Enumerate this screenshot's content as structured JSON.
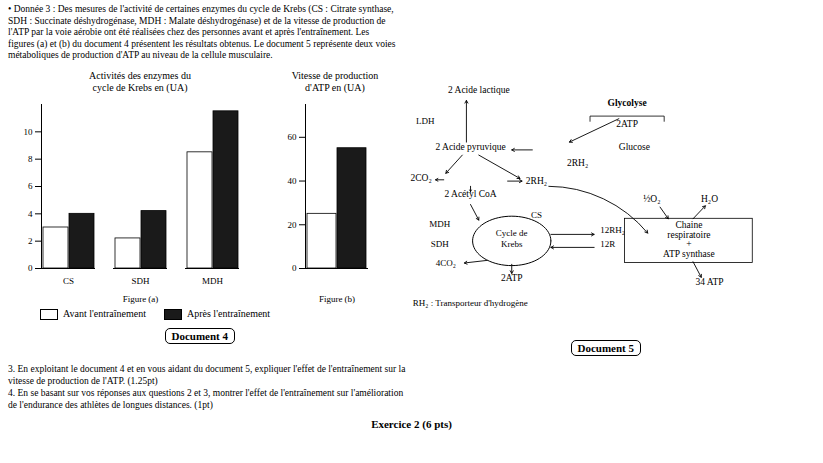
{
  "chart_data": [
    {
      "type": "bar",
      "title": "Activités des enzymes du\ncycle de Krebs en (UA)",
      "x_label": "Figure (a)",
      "categories": [
        "CS",
        "SDH",
        "MDH"
      ],
      "series": [
        {
          "name": "Avant l'entraînement",
          "color": "#ffffff",
          "values": [
            3.0,
            2.2,
            8.5
          ]
        },
        {
          "name": "Après l'entraînement",
          "color": "#1a1a1a",
          "values": [
            4.0,
            4.2,
            11.5
          ]
        }
      ],
      "ylim": [
        0,
        12
      ],
      "yticks": [
        0,
        2,
        4,
        6,
        8,
        10
      ],
      "grid": false,
      "legend": "bottom left",
      "annotations": [
        "• Donnée 3 : Des mesures de l'activité de certaines enzymes du cycle de Krebs (CS : Citrate synthase,\nSDH : Succinate déshydrogénase, MDH : Malate déshydrogénase) et de la vitesse de production de\nl'ATP par la voie aérobie ont été réalisées chez des personnes avant et après l'entraînement. Les\nfigures (a) et (b) du document 4 présentent les résultats obtenus. Le document 5 représente deux voies\nmétaboliques de production d'ATP au niveau de la cellule musculaire.",
        "Document 4",
        "Document 5",
        "3. En exploitant le document 4 et en vous aidant du document 5, expliquer l'effet de l'entraînement sur la\nvitesse de production de l'ATP. (1.25pt)",
        "4. En se basant sur vos réponses aux questions 2 et 3, montrer l'effet de l'entraînement sur l'amélioration\nde l'endurance des athlètes de longues distances. (1pt)",
        "Exercice 2 (6 pts)",
        "2 Acide lactique",
        "LDH",
        "2 Acide pyruvique",
        "Glucose",
        "Glycolyse",
        "2ATP",
        "2RH₂",
        "2CO₂",
        "2RH₂",
        "2 Acétyl CoA",
        "CS",
        "Cycle de",
        "Krebs",
        "MDH",
        "SDH",
        "12RH₂",
        "12R",
        "Chaine",
        "respiratoire",
        "+",
        "ATP synthase",
        "½O₂",
        "H₂O",
        "4CO₂",
        "2ATP",
        "34 ATP",
        "RH₂ : Transporteur d'hydrogène"
      ]
    },
    {
      "type": "bar",
      "title": "Vitesse de production\nd'ATP en (UA)",
      "x_label": "Figure (b)",
      "categories": [
        null
      ],
      "series": [
        {
          "name": "Avant l'entraînement",
          "color": "#ffffff",
          "values": [
            25
          ]
        },
        {
          "name": "Après l'entraînement",
          "color": "#1a1a1a",
          "values": [
            55
          ]
        }
      ],
      "ylim": [
        0,
        75
      ],
      "yticks": [
        0,
        20,
        40,
        60
      ],
      "grid": false,
      "tick_labels": "y"
    }
  ]
}
